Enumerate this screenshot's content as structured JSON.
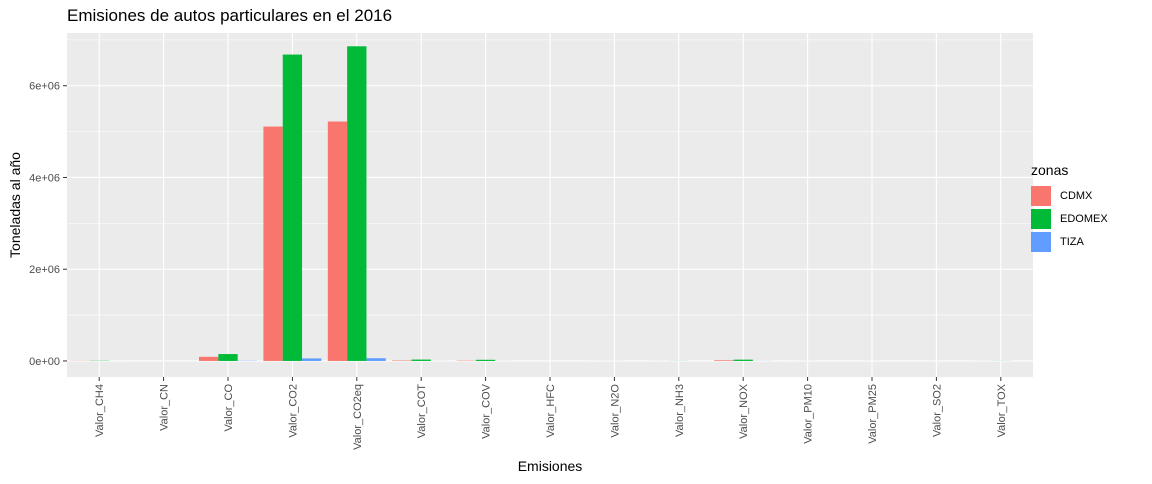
{
  "chart_data": {
    "type": "bar",
    "title": "Emisiones de autos particulares en el 2016",
    "xlabel": "Emisiones",
    "ylabel": "Toneladas al año",
    "categories": [
      "Valor_CH4",
      "Valor_CN",
      "Valor_CO",
      "Valor_CO2",
      "Valor_CO2eq",
      "Valor_COT",
      "Valor_COV",
      "Valor_HFC",
      "Valor_N2O",
      "Valor_NH3",
      "Valor_NOX",
      "Valor_PM10",
      "Valor_PM25",
      "Valor_SO2",
      "Valor_TOX"
    ],
    "series": [
      {
        "name": "CDMX",
        "color": "#F8766D",
        "values": [
          3000,
          0,
          90000,
          5110000,
          5220000,
          10000,
          7000,
          100,
          500,
          1000,
          15000,
          400,
          300,
          200,
          1000
        ]
      },
      {
        "name": "EDOMEX",
        "color": "#00BA38",
        "values": [
          5000,
          0,
          150000,
          6680000,
          6860000,
          30000,
          25000,
          200,
          800,
          2000,
          28000,
          600,
          500,
          300,
          2000
        ]
      },
      {
        "name": "TIZA",
        "color": "#619CFF",
        "values": [
          500,
          0,
          5000,
          55000,
          60000,
          1000,
          800,
          10,
          50,
          100,
          1500,
          50,
          40,
          20,
          100
        ]
      }
    ],
    "ylim": [
      -350000,
      7150000
    ],
    "yticks": [
      0,
      2000000,
      4000000,
      6000000
    ],
    "ytick_labels": [
      "0e+00",
      "2e+06",
      "4e+06",
      "6e+06"
    ],
    "grid": true,
    "legend": {
      "title": "zonas",
      "position": "right"
    },
    "style": {
      "panel_bg": "#EBEBEB",
      "grid_color": "#FFFFFF",
      "axis_text_color": "#4D4D4D"
    }
  }
}
